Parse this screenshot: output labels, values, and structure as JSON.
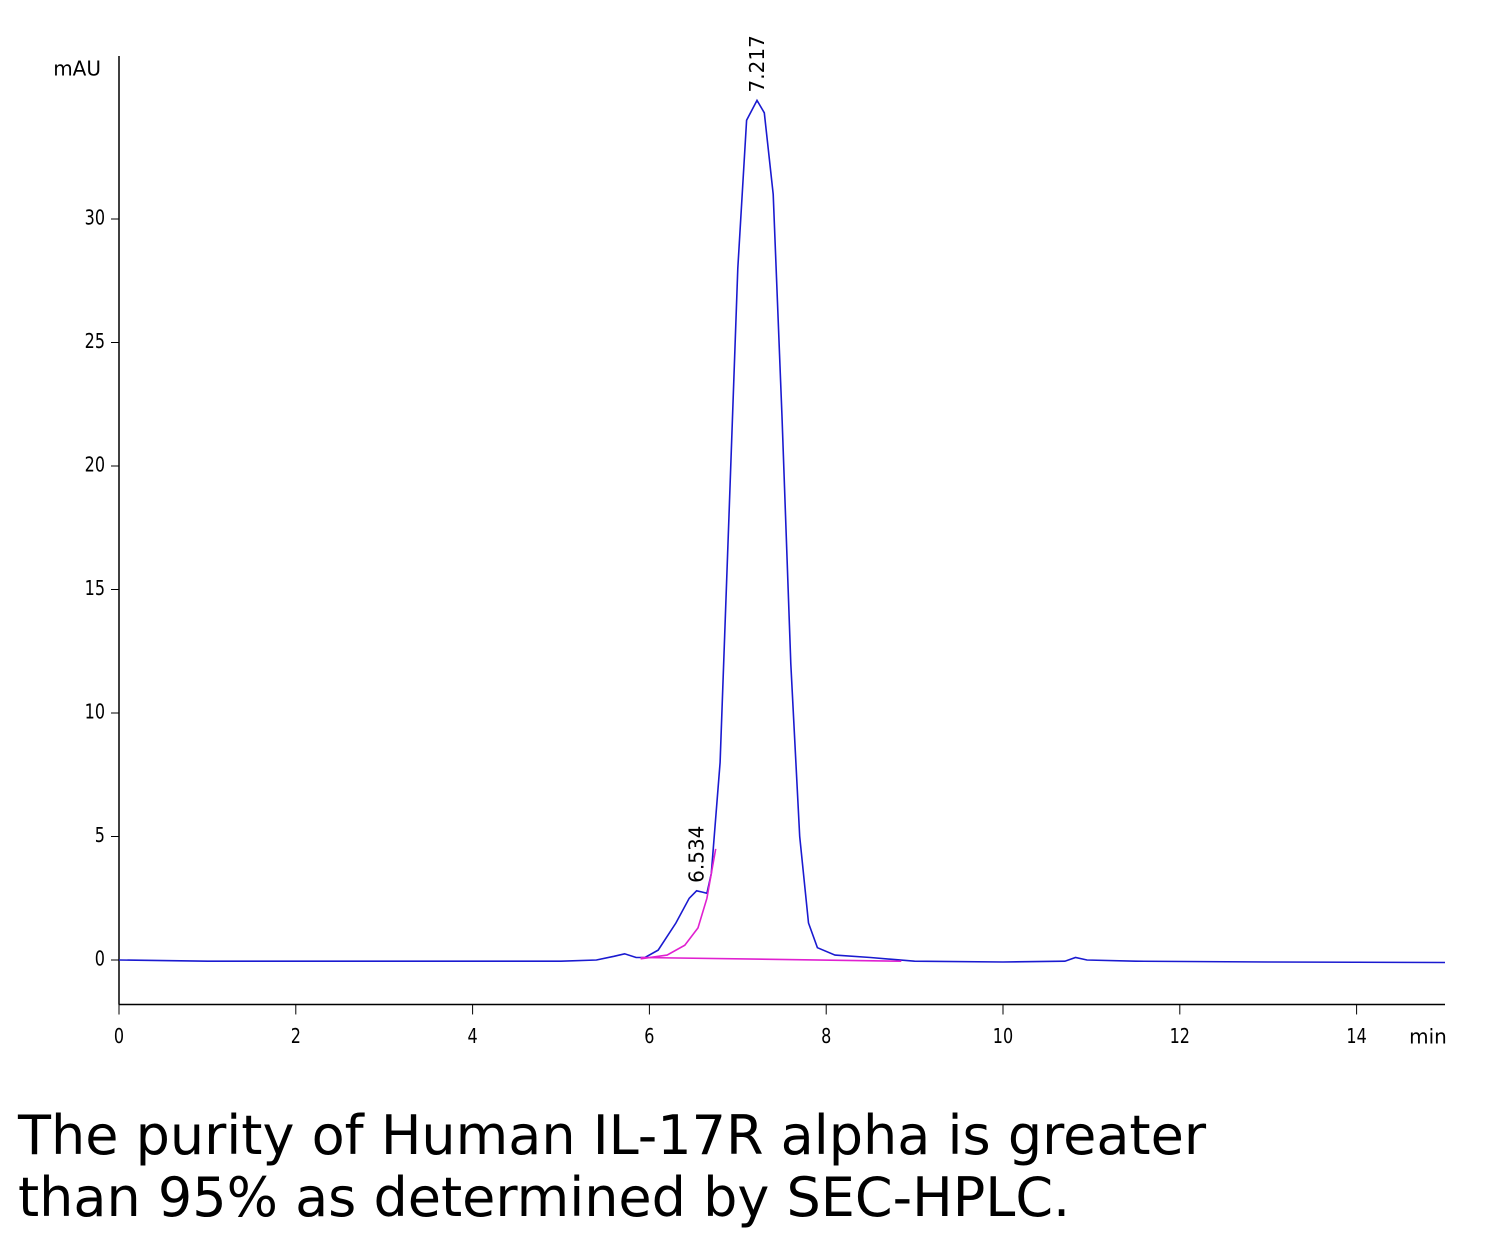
{
  "chart_data": {
    "type": "line",
    "y_label": "mAU",
    "x_label": "min",
    "xlim": [
      0,
      15
    ],
    "ylim": [
      -1.8,
      36.6
    ],
    "xticks": [
      0,
      2,
      4,
      6,
      8,
      10,
      12,
      14
    ],
    "yticks": [
      0,
      5,
      10,
      15,
      20,
      25,
      30
    ],
    "series": [
      {
        "color": "#1a1ad0",
        "x": [
          0,
          1,
          3,
          5,
          5.4,
          5.6,
          5.72,
          5.85,
          5.95,
          6.1,
          6.3,
          6.45,
          6.534,
          6.6,
          6.65,
          6.7,
          6.8,
          6.9,
          7.0,
          7.1,
          7.217,
          7.3,
          7.4,
          7.5,
          7.6,
          7.7,
          7.8,
          7.9,
          8.1,
          8.5,
          9,
          10,
          10.7,
          10.82,
          10.95,
          11.5,
          13,
          15
        ],
        "values": [
          0,
          -0.05,
          -0.05,
          -0.05,
          0,
          0.15,
          0.25,
          0.1,
          0.1,
          0.4,
          1.5,
          2.5,
          2.8,
          2.75,
          2.7,
          3.5,
          8,
          18,
          28,
          34,
          34.8,
          34.3,
          31,
          22,
          12,
          5,
          1.5,
          0.5,
          0.2,
          0.1,
          -0.05,
          -0.08,
          -0.05,
          0.1,
          0,
          -0.05,
          -0.08,
          -0.1
        ]
      },
      {
        "color": "#e020d0",
        "x": [
          5.9,
          6.2,
          6.4,
          6.55,
          6.65,
          6.75
        ],
        "values": [
          0.05,
          0.2,
          0.6,
          1.3,
          2.5,
          4.5
        ]
      },
      {
        "color": "#e020d0",
        "x": [
          5.9,
          8.85
        ],
        "values": [
          0.1,
          -0.05
        ]
      }
    ],
    "annotations": [
      {
        "text": "6.534",
        "x": 6.534,
        "y": 2.8
      },
      {
        "text": "7.217",
        "x": 7.217,
        "y": 34.8
      }
    ]
  },
  "caption": [
    "The purity of Human IL-17R alpha is greater",
    "than 95% as determined by SEC-HPLC."
  ]
}
